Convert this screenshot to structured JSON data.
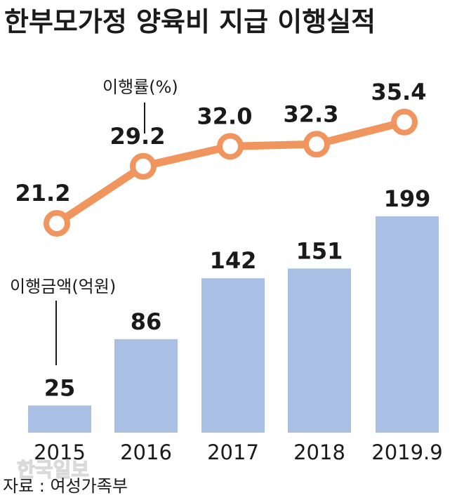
{
  "title": "한부모가정 양육비 지급 이행실적",
  "source": "자료 : 여성가족부",
  "watermark": "한국일보",
  "colors": {
    "bar": "#a9bfe3",
    "line": "#f0955e",
    "marker_fill": "#ffffff",
    "text": "#1a1a1a"
  },
  "chart_data": {
    "type": "bar",
    "categories": [
      "2015",
      "2016",
      "2017",
      "2018",
      "2019.9"
    ],
    "series": [
      {
        "name": "이행금액(억원)",
        "type": "bar",
        "values": [
          25,
          86,
          142,
          151,
          199
        ]
      },
      {
        "name": "이행률(%)",
        "type": "line",
        "values": [
          21.2,
          29.2,
          32.0,
          32.3,
          35.4
        ]
      }
    ],
    "value_labels": {
      "bar": [
        "25",
        "86",
        "142",
        "151",
        "199"
      ],
      "line": [
        "21.2",
        "29.2",
        "32.0",
        "32.3",
        "35.4"
      ]
    },
    "legend_labels": {
      "bar": "이행금액(억원)",
      "line": "이행률(%)"
    },
    "grid": false
  }
}
